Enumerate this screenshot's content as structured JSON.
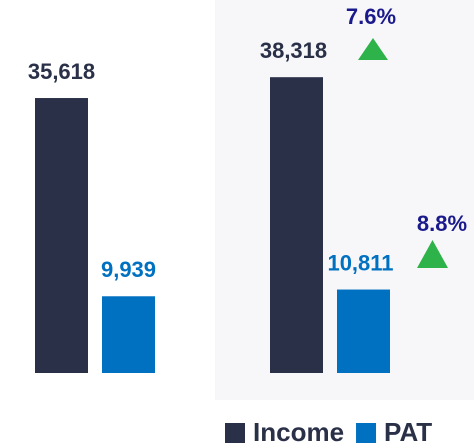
{
  "chart_data": {
    "type": "bar",
    "categories": [
      null,
      null
    ],
    "series": [
      {
        "name": "Income",
        "color": "#2a3047",
        "values": [
          35618,
          38318
        ],
        "value_labels": [
          "35,618",
          "38,318"
        ],
        "label_color": "#2a3047"
      },
      {
        "name": "PAT",
        "color": "#0070c0",
        "values": [
          9939,
          10811
        ],
        "value_labels": [
          "9,939",
          "10,811"
        ],
        "label_color": "#0070c0"
      }
    ],
    "annotations": [
      "7.6%",
      "8.8%"
    ],
    "annotation_color": "#1a1a8c",
    "marker_color": "#2db34a"
  }
}
